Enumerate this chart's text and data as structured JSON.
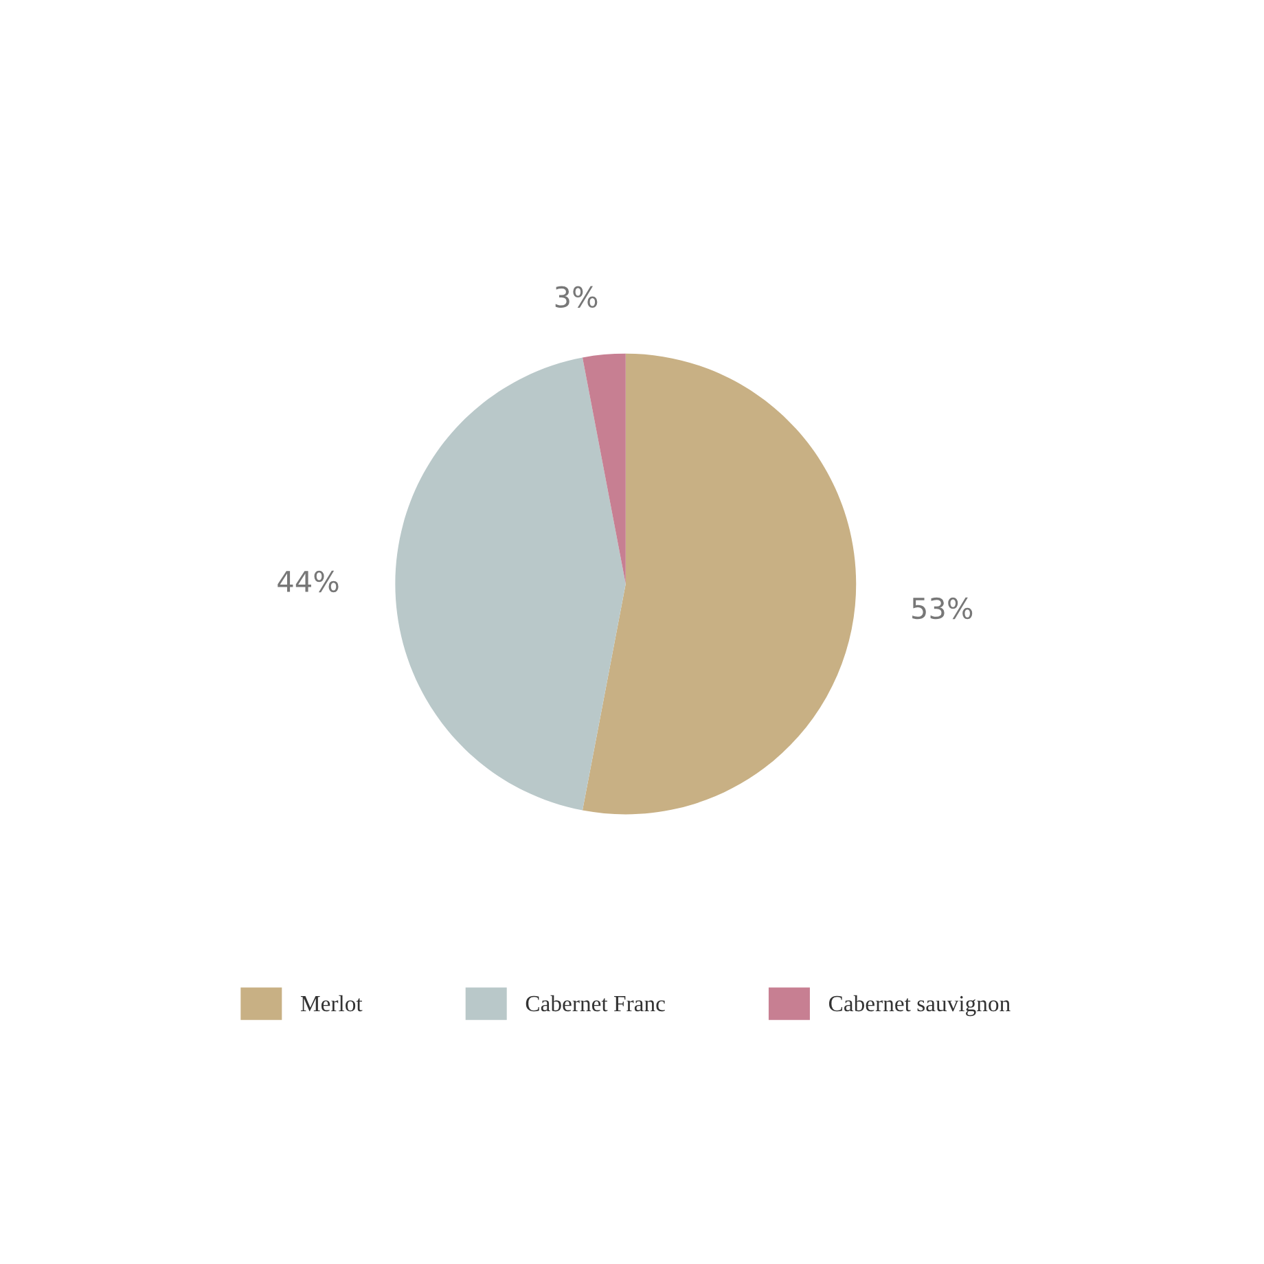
{
  "chart_data": {
    "type": "pie",
    "categories": [
      "Merlot",
      "Cabernet Franc",
      "Cabernet sauvignon"
    ],
    "values": [
      53,
      44,
      3
    ],
    "colors": [
      "#c8b084",
      "#b9c8c9",
      "#c77f92"
    ],
    "value_labels": [
      "53%",
      "44%",
      "3%"
    ],
    "legend": "bottom"
  }
}
